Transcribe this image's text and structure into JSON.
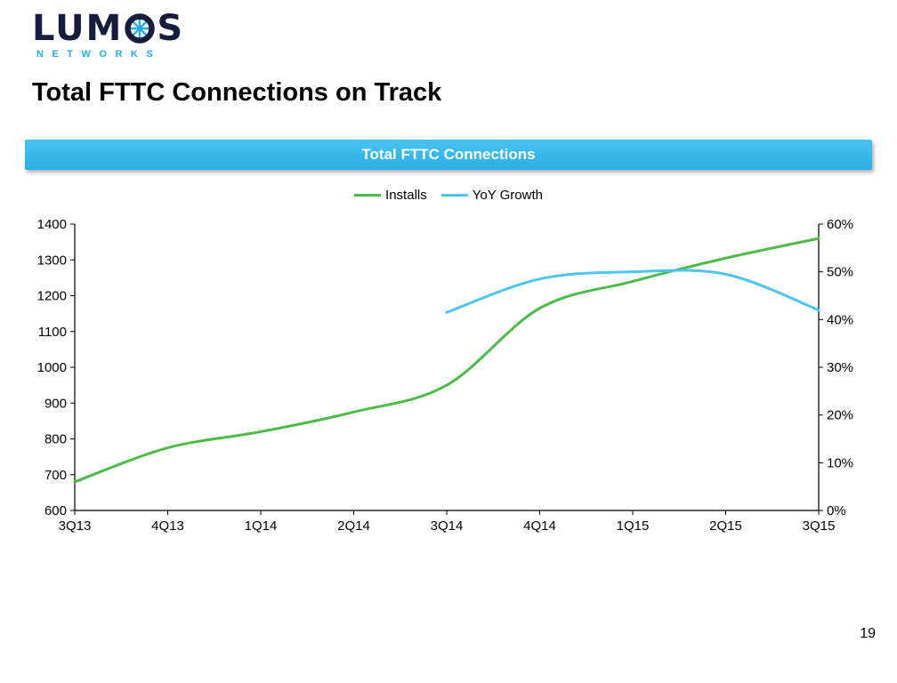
{
  "brand": {
    "logo_text_leading": "LUM",
    "logo_text_trailing": "S",
    "logo_subtext": "NETWORKS",
    "navy": "#161C3B",
    "cyan": "#29ABE2"
  },
  "page": {
    "title": "Total FTTC Connections on Track",
    "page_number": "19"
  },
  "banner": {
    "label": "Total FTTC Connections",
    "background_color": "#2FB5EA"
  },
  "chart_data": {
    "type": "line",
    "title": "Total FTTC Connections",
    "grid": false,
    "legend_position": "top",
    "categories": [
      "3Q13",
      "4Q13",
      "1Q14",
      "2Q14",
      "3Q14",
      "4Q14",
      "1Q15",
      "2Q15",
      "3Q15"
    ],
    "series": [
      {
        "name": "Installs",
        "axis": "left",
        "color": "#4CBB48",
        "values": [
          680,
          775,
          820,
          875,
          950,
          1165,
          1240,
          1305,
          1360
        ]
      },
      {
        "name": "YoY Growth",
        "axis": "right",
        "color": "#4DC5EF",
        "values": [
          null,
          null,
          null,
          null,
          41.5,
          48.5,
          50,
          49.5,
          42
        ]
      }
    ],
    "left_axis": {
      "min": 600,
      "max": 1400,
      "step": 100,
      "format": "number"
    },
    "right_axis": {
      "min": 0,
      "max": 60,
      "step": 10,
      "format": "percent"
    },
    "axis_color": "#000000"
  }
}
